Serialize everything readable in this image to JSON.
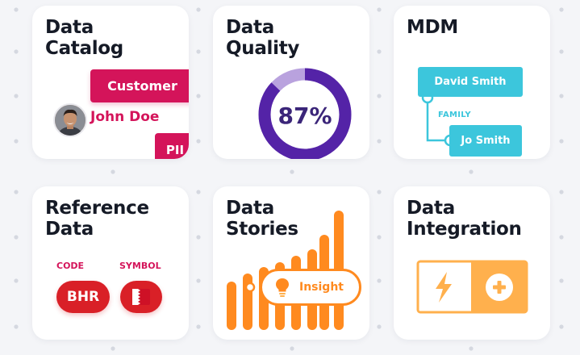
{
  "cards": {
    "catalog": {
      "title_line1": "Data",
      "title_line2": "Catalog",
      "tag": "Customer",
      "person": "John Doe",
      "pii": "PII"
    },
    "quality": {
      "title_line1": "Data",
      "title_line2": "Quality",
      "value_label": "87%",
      "value": 0.87,
      "ring_color": "#5423a7",
      "track_color": "#b9a2de"
    },
    "mdm": {
      "title": "MDM",
      "parent": "David Smith",
      "relation": "FAMILY",
      "child": "Jo Smith",
      "color": "#3cc6dc"
    },
    "reference": {
      "title_line1": "Reference",
      "title_line2": "Data",
      "code_label": "CODE",
      "symbol_label": "SYMBOL",
      "code_value": "BHR",
      "flag": "bahrain-flag-icon"
    },
    "stories": {
      "title_line1": "Data",
      "title_line2": "Stories",
      "insight": "Insight",
      "icon": "lightbulb-icon",
      "bar_color": "#ff8a1f"
    },
    "integration": {
      "title_line1": "Data",
      "title_line2": "Integration",
      "left_icon": "lightning-icon",
      "right_icon": "plus-icon",
      "color": "#ffb04d"
    }
  }
}
